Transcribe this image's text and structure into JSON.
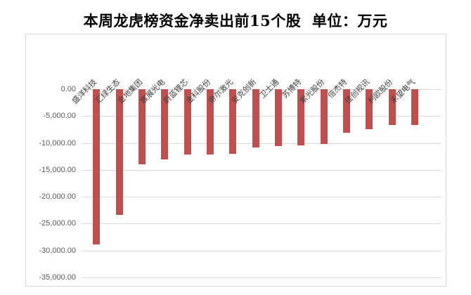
{
  "title": "本周龙虎榜资金净卖出前15个股  单位：万元",
  "chart_data": {
    "type": "bar",
    "title": "本周龙虎榜资金净卖出前15个股",
    "unit_label": "单位：万元",
    "categories": [
      "盛洋科技",
      "汇绿生态",
      "金地集团",
      "宸展光电",
      "蔚蓝锂芯",
      "金科股份",
      "帝尔激光",
      "安克创新",
      "卫士通",
      "苏博特",
      "紫光股份",
      "倍杰特",
      "佳创视讯",
      "利欧股份",
      "禾望电气"
    ],
    "values": [
      -28900,
      -23400,
      -14000,
      -13100,
      -12200,
      -12100,
      -12000,
      -10800,
      -10600,
      -10500,
      -10200,
      -8100,
      -7400,
      -6700,
      -6600
    ],
    "xlabel": "",
    "ylabel": "",
    "ylim": [
      -35000,
      0
    ],
    "ytick_step": 5000,
    "ytick_labels": [
      "0.00",
      "-5,000.00",
      "-10,000.00",
      "-15,000.00",
      "-20,000.00",
      "-25,000.00",
      "-30,000.00",
      "-35,000.00"
    ],
    "grid": true,
    "legend": "none",
    "bar_color": "#C0504D",
    "gridline_color": "#D9D9D9",
    "frame_color": "#D6D6D6",
    "tick_label_color": "#595959",
    "category_label_color": "#404040",
    "title_color": "#000000",
    "background": "#FFFFFF"
  }
}
